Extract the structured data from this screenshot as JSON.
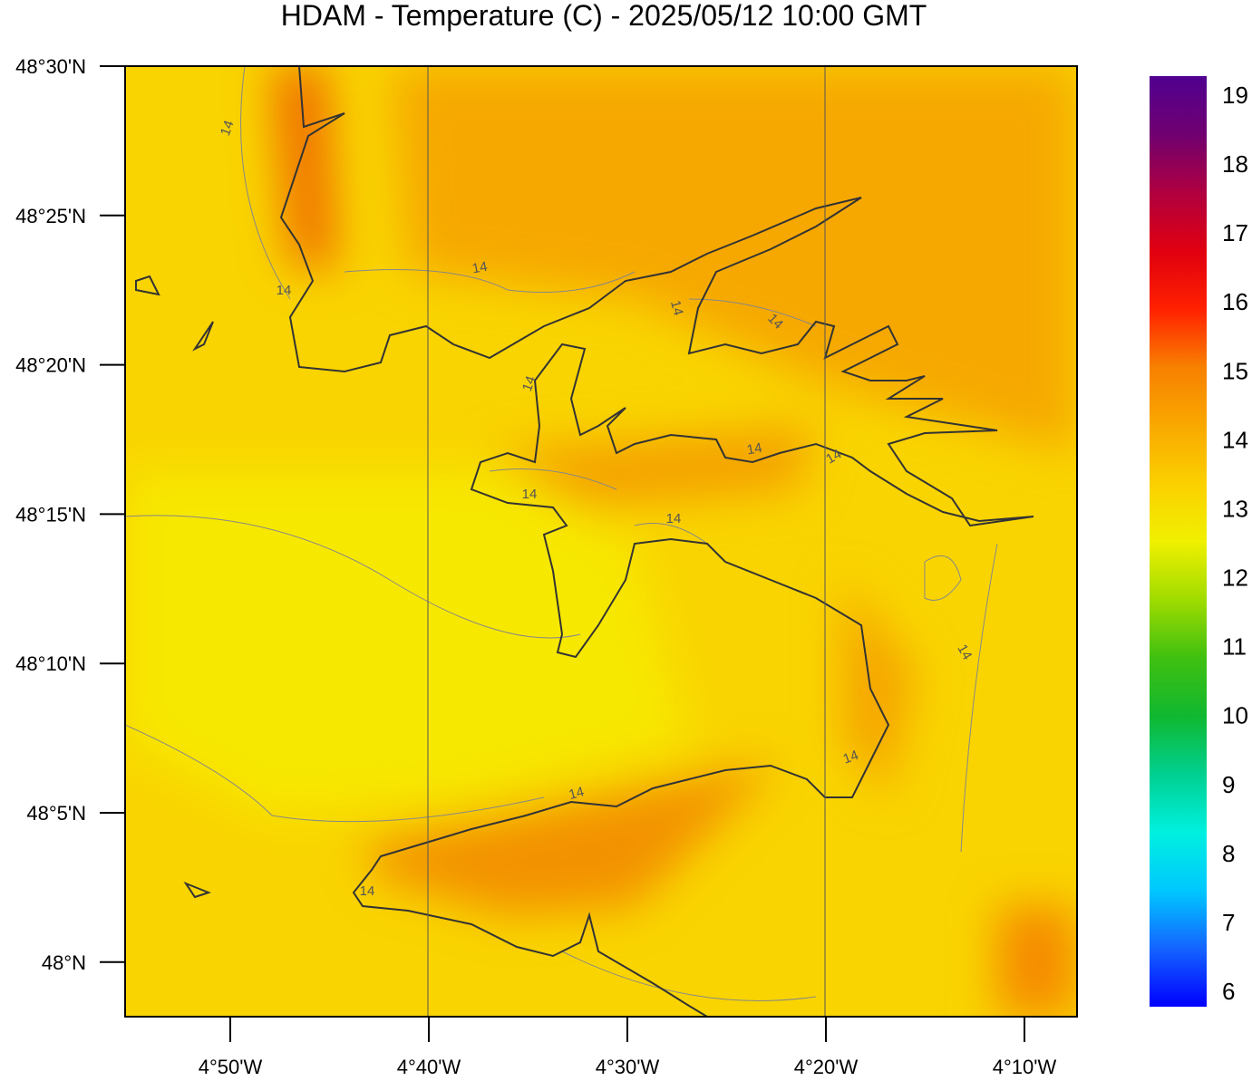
{
  "title": "HDAM - Temperature (C)  -  2025/05/12  10:00 GMT",
  "lat_labels": [
    "48°30'N",
    "48°25'N",
    "48°20'N",
    "48°15'N",
    "48°10'N",
    "48°5'N",
    "48°N"
  ],
  "lon_labels": [
    "4°50'W",
    "4°40'W",
    "4°30'W",
    "4°20'W",
    "4°10'W"
  ],
  "contour_labels": [
    "14",
    "14",
    "14",
    "14",
    "14",
    "14",
    "14",
    "14",
    "14",
    "14",
    "14",
    "14",
    "14",
    "14"
  ],
  "colorbar": {
    "range": [
      5.75,
      19.25
    ],
    "ticks": [
      6,
      7,
      8,
      9,
      10,
      11,
      12,
      13,
      14,
      15,
      16,
      17,
      18,
      19
    ],
    "colors": [
      "#0000ff",
      "#1464ff",
      "#00c8ff",
      "#00f0e0",
      "#00d090",
      "#10b830",
      "#40c010",
      "#a0dc00",
      "#f0f000",
      "#fbd000",
      "#f9a800",
      "#f88000",
      "#ff2000",
      "#e00010",
      "#b00040",
      "#700070",
      "#500090"
    ]
  }
}
